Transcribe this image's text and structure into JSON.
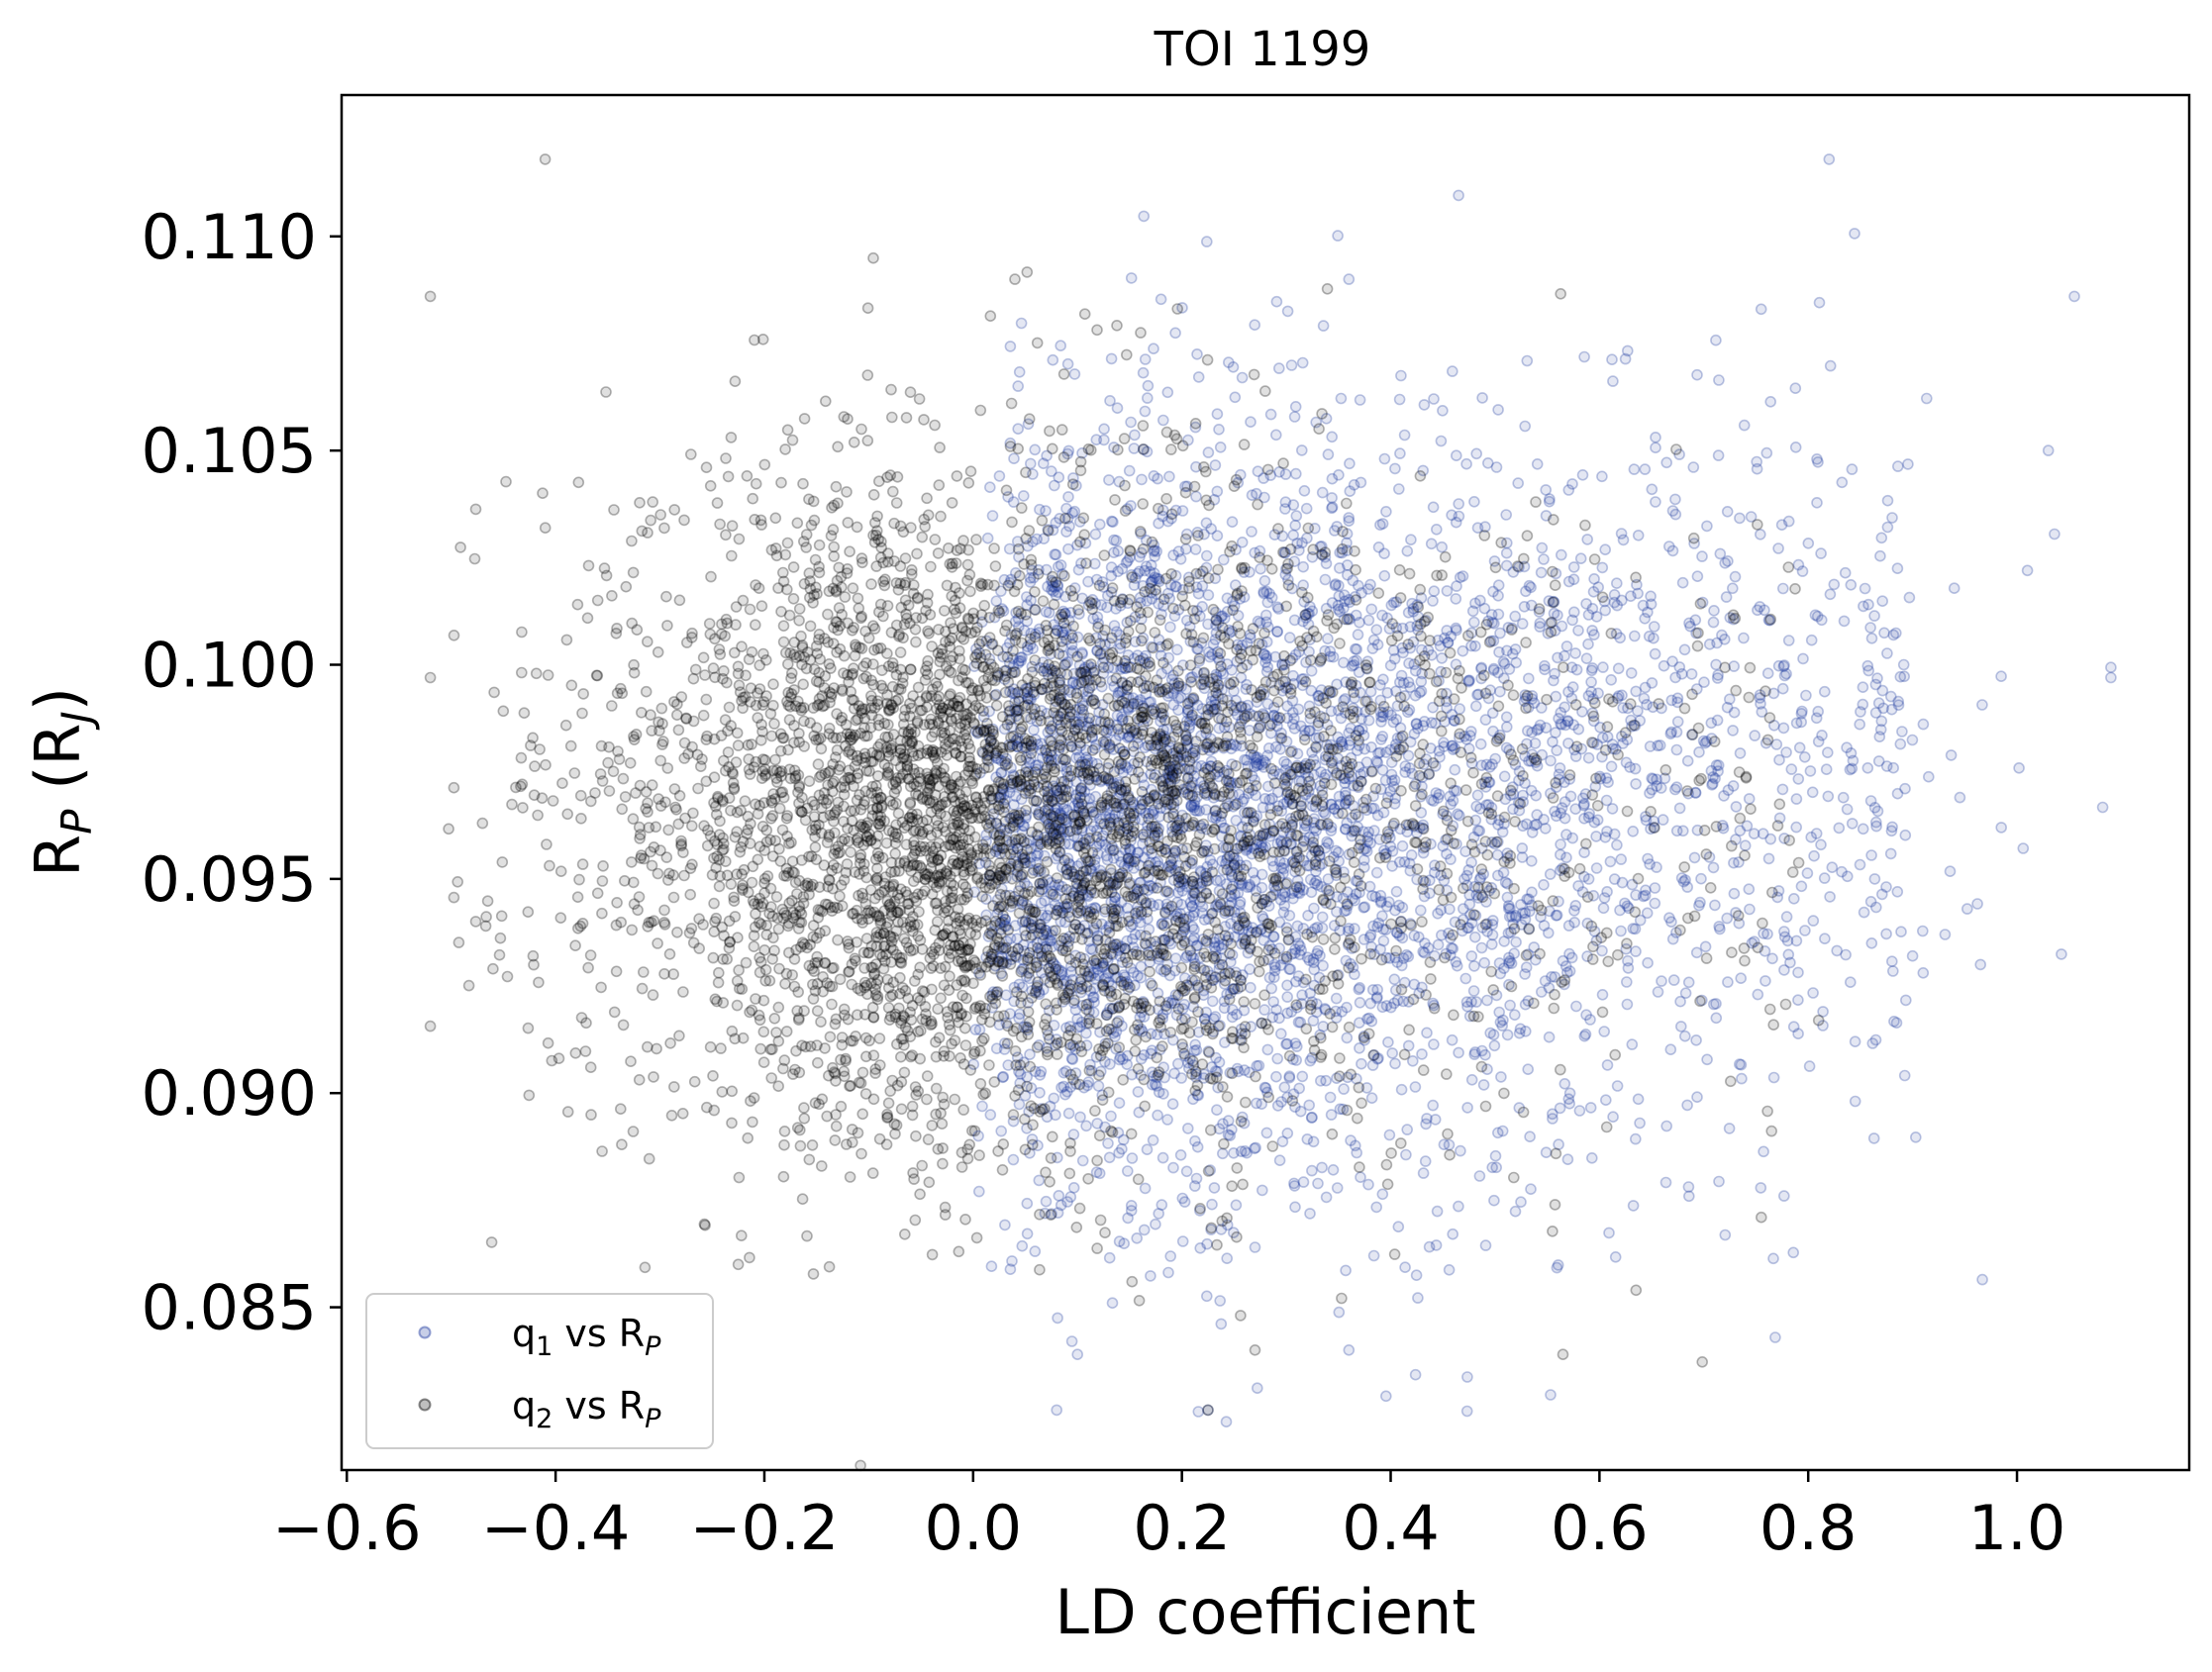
{
  "chart_data": {
    "type": "scatter",
    "title": "TOI 1199",
    "xlabel": "LD coefficient",
    "ylabel": "R_P (R_J)",
    "xlim": [
      -0.605,
      1.165
    ],
    "ylim": [
      0.0812,
      0.1133
    ],
    "x_ticks": [
      -0.6,
      -0.4,
      -0.2,
      0.0,
      0.2,
      0.4,
      0.6,
      0.8,
      1.0
    ],
    "x_tick_labels": [
      "−0.6",
      "−0.4",
      "−0.2",
      "0.0",
      "0.2",
      "0.4",
      "0.6",
      "0.8",
      "1.0"
    ],
    "y_ticks": [
      0.085,
      0.09,
      0.095,
      0.1,
      0.105,
      0.11
    ],
    "y_tick_labels": [
      "0.085",
      "0.090",
      "0.095",
      "0.100",
      "0.105",
      "0.110"
    ],
    "grid": false,
    "legend_position": "lower-left",
    "series": [
      {
        "name": "q1 vs RP",
        "legend_main": "q",
        "legend_sub1": "1",
        "legend_mid": " vs R",
        "legend_sub2": "P",
        "color": "#1f3aa0",
        "x_range": [
          0.0,
          1.09
        ],
        "y_center": 0.096,
        "points": [
          [
            0.08,
            0.0826
          ],
          [
            0.225,
            0.0826
          ],
          [
            0.36,
            0.084
          ],
          [
            0.1,
            0.0839
          ],
          [
            0.82,
            0.1118
          ],
          [
            1.055,
            0.1086
          ],
          [
            1.09,
            0.0997
          ],
          [
            1.03,
            0.105
          ],
          [
            1.01,
            0.1022
          ],
          [
            0.965,
            0.093
          ],
          [
            0.985,
            0.0962
          ],
          [
            0.9,
            0.0932
          ],
          [
            0.36,
            0.109
          ],
          [
            0.005,
            0.089
          ],
          [
            0.27,
            0.0864
          ]
        ],
        "n_generated": 4200
      },
      {
        "name": "q2 vs RP",
        "legend_main": "q",
        "legend_sub1": "2",
        "legend_mid": " vs R",
        "legend_sub2": "P",
        "color": "#000000",
        "x_range": [
          -0.52,
          0.82
        ],
        "y_center": 0.0965,
        "points": [
          [
            -0.41,
            0.1118
          ],
          [
            -0.52,
            0.1086
          ],
          [
            -0.52,
            0.0997
          ],
          [
            0.04,
            0.109
          ],
          [
            -0.225,
            0.086
          ],
          [
            0.565,
            0.0839
          ],
          [
            0.635,
            0.0854
          ],
          [
            0.755,
            0.0871
          ],
          [
            0.225,
            0.0826
          ],
          [
            0.27,
            0.084
          ],
          [
            0.81,
            0.0917
          ],
          [
            -0.47,
            0.0963
          ],
          [
            -0.46,
            0.0929
          ]
        ],
        "n_generated": 4200
      }
    ]
  }
}
